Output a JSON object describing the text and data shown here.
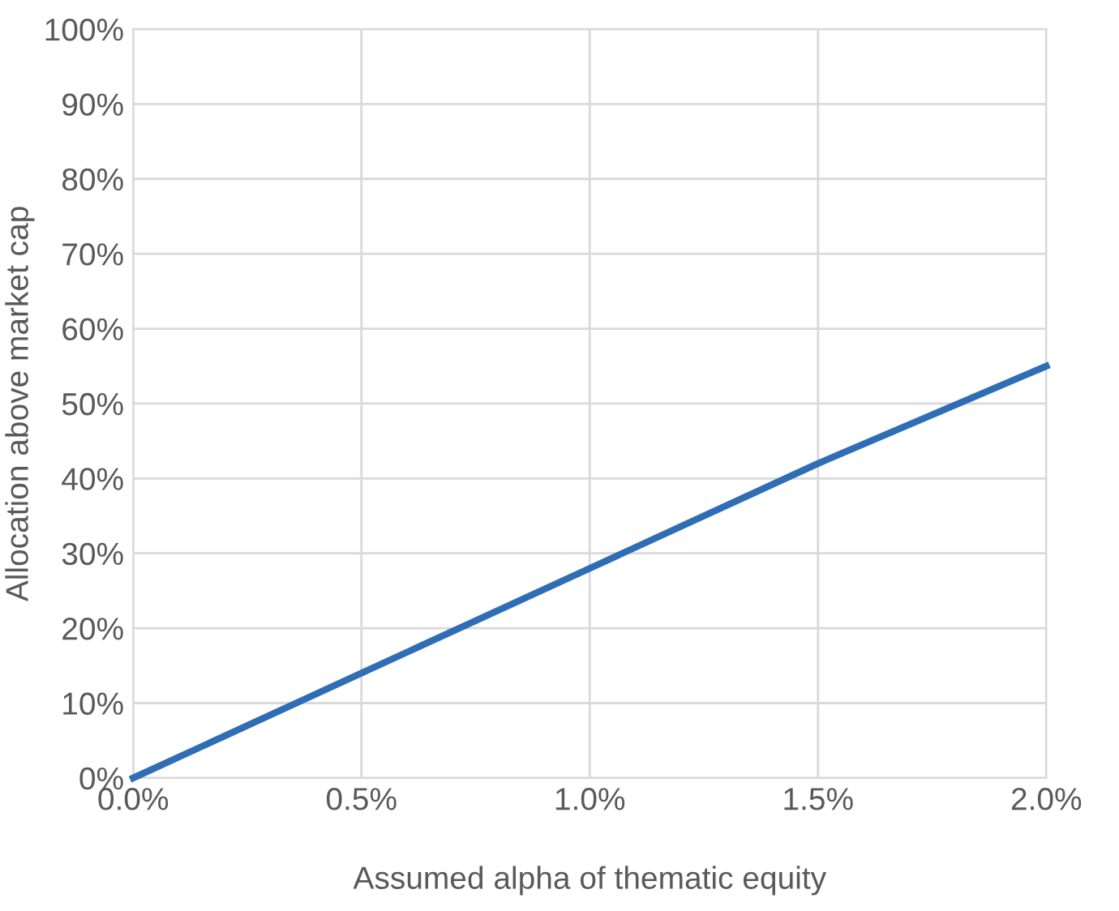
{
  "chart_data": {
    "type": "line",
    "xlabel": "Assumed alpha of thematic equity",
    "ylabel": "Allocation above market cap",
    "x": [
      0,
      0.5,
      1.0,
      1.5,
      2.0
    ],
    "series": [
      {
        "color": "#2f6db5",
        "values": [
          0,
          14,
          28,
          42,
          55
        ]
      }
    ],
    "xlim": [
      0,
      2
    ],
    "ylim": [
      0,
      100
    ],
    "xticks": [
      {
        "value": 0,
        "label": "0.0%"
      },
      {
        "value": 0.5,
        "label": "0.5%"
      },
      {
        "value": 1.0,
        "label": "1.0%"
      },
      {
        "value": 1.5,
        "label": "1.5%"
      },
      {
        "value": 2.0,
        "label": "2.0%"
      }
    ],
    "yticks": [
      {
        "value": 0,
        "label": "0%"
      },
      {
        "value": 10,
        "label": "10%"
      },
      {
        "value": 20,
        "label": "20%"
      },
      {
        "value": 30,
        "label": "30%"
      },
      {
        "value": 40,
        "label": "40%"
      },
      {
        "value": 50,
        "label": "50%"
      },
      {
        "value": 60,
        "label": "60%"
      },
      {
        "value": 70,
        "label": "70%"
      },
      {
        "value": 80,
        "label": "80%"
      },
      {
        "value": 90,
        "label": "90%"
      },
      {
        "value": 100,
        "label": "100%"
      }
    ],
    "grid": true,
    "marker": "none",
    "line_style": "solid"
  }
}
